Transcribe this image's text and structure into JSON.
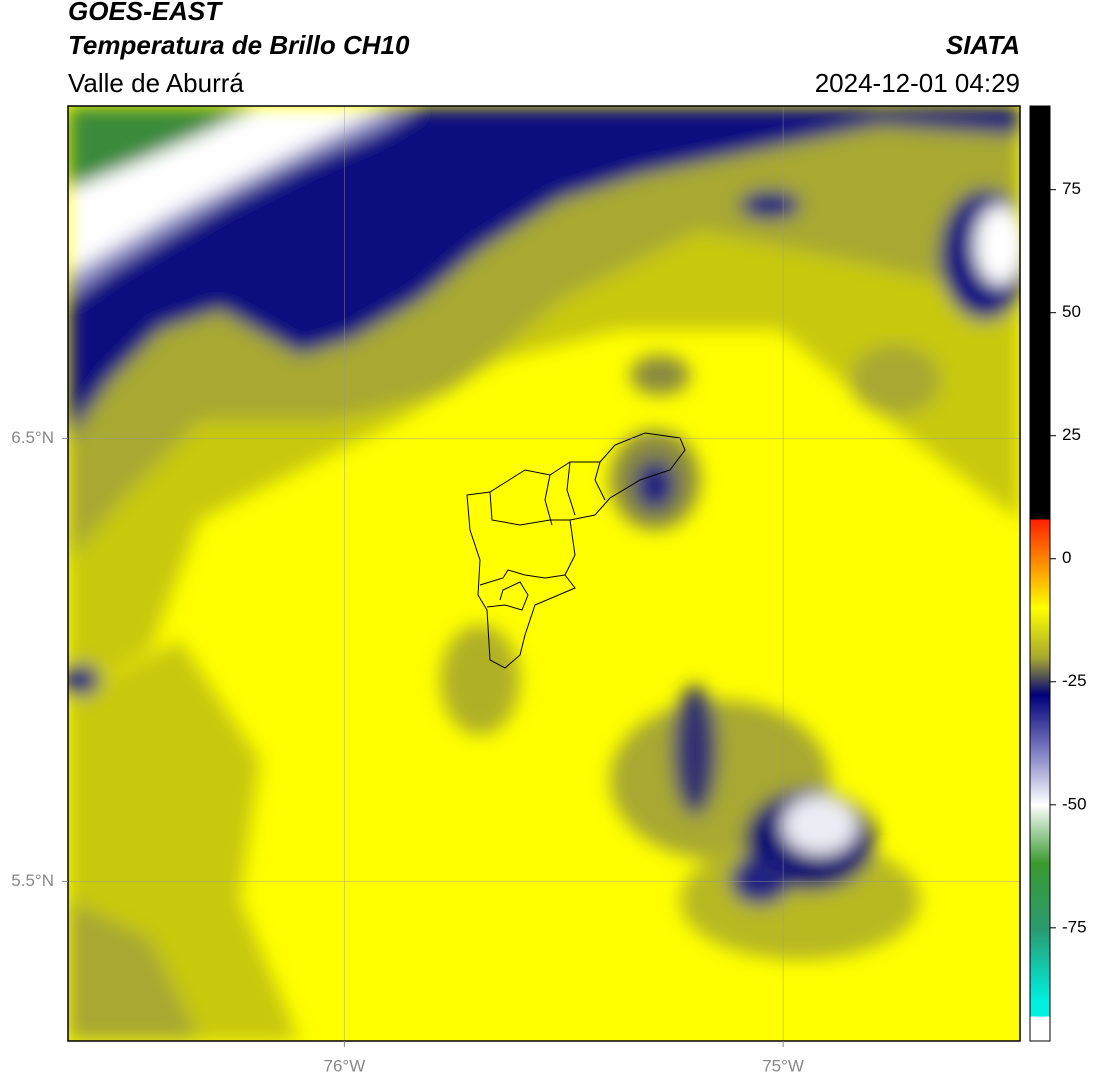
{
  "chart_data": {
    "type": "map",
    "title": "GOES-EAST",
    "subtitle": "Temperatura de Brillo CH10",
    "region": "Valle de Aburrá",
    "source": "SIATA",
    "timestamp": "2024-12-01 04:29",
    "xlim": [
      -76.63,
      -74.46
    ],
    "ylim": [
      5.14,
      7.25
    ],
    "xticks": [
      {
        "value": -76,
        "label": "76°W"
      },
      {
        "value": -75,
        "label": "75°W"
      }
    ],
    "yticks": [
      {
        "value": 6.5,
        "label": "6.5°N"
      },
      {
        "value": 5.5,
        "label": "5.5°N"
      }
    ],
    "grid": true,
    "colorbar": {
      "lim": [
        -98,
        92
      ],
      "ticks": [
        75,
        50,
        25,
        0,
        -25,
        -50,
        -75
      ]
    }
  }
}
